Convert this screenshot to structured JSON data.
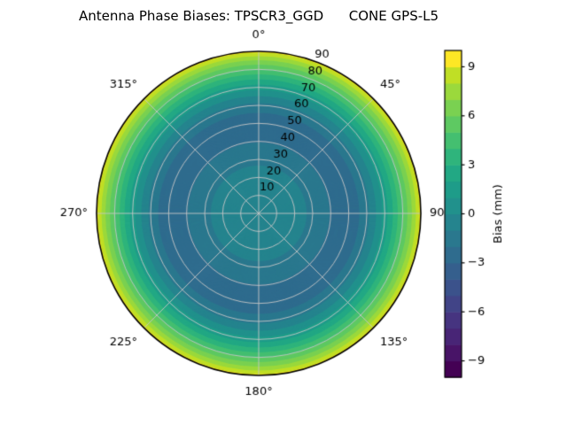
{
  "chart_data": {
    "type": "polar_contour",
    "title": "Antenna Phase Biases: TPSCR3_GGD      CONE GPS-L5",
    "background_color": "#ffffff",
    "grid_color": "#c6c6c6",
    "outline_color": "#000000",
    "rmax": 90,
    "radial_ticks": [
      10,
      20,
      30,
      40,
      50,
      60,
      70,
      80,
      90
    ],
    "radial_label_angle_deg": 22.5,
    "angular_ticks": [
      {
        "angle_deg": 0,
        "label": "0°"
      },
      {
        "angle_deg": 45,
        "label": "45°"
      },
      {
        "angle_deg": 90,
        "label": "90"
      },
      {
        "angle_deg": 135,
        "label": "135°"
      },
      {
        "angle_deg": 180,
        "label": "180°"
      },
      {
        "angle_deg": 225,
        "label": "225°"
      },
      {
        "angle_deg": 270,
        "label": "270°"
      },
      {
        "angle_deg": 315,
        "label": "315°"
      }
    ],
    "levels_min": -10,
    "levels_max": 10,
    "levels_step": 1,
    "colormap_name": "viridis",
    "band_colors": [
      "#440154",
      "#481467",
      "#482576",
      "#463480",
      "#414487",
      "#3b528b",
      "#355f8d",
      "#2f6c8e",
      "#2a788e",
      "#25848e",
      "#21918c",
      "#1e9c89",
      "#22a884",
      "#2fb47c",
      "#44bf70",
      "#5ec962",
      "#7ad151",
      "#9bd93c",
      "#c0df25",
      "#fde725"
    ],
    "radial_profile": {
      "r": [
        0,
        10,
        20,
        25,
        30,
        38,
        45,
        52,
        56,
        60,
        63,
        66,
        69,
        72,
        75,
        78,
        81,
        84,
        87,
        90
      ],
      "bias_mm": [
        -0.5,
        -0.6,
        -0.8,
        -0.9,
        -1.2,
        -1.9,
        -2.4,
        -2.4,
        -2.0,
        -1.3,
        -0.6,
        0.2,
        1.1,
        2.1,
        3.1,
        4.2,
        5.3,
        6.5,
        7.8,
        9.3
      ]
    },
    "colorbar": {
      "label": "Bias (mm)",
      "ticks": [
        9,
        6,
        3,
        0,
        -3,
        -6,
        -9
      ]
    }
  }
}
